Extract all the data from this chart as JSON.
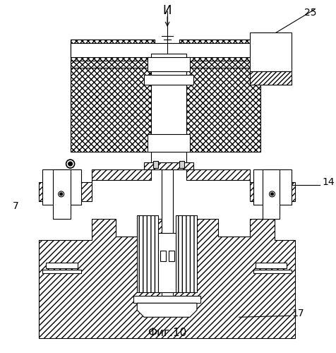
{
  "title": "Фиг.10",
  "label_И": "И",
  "label_25": "25",
  "label_14": "14",
  "label_7": "7",
  "label_17": "17",
  "bg_color": "#ffffff",
  "line_color": "#000000",
  "hatch_color": "#000000"
}
